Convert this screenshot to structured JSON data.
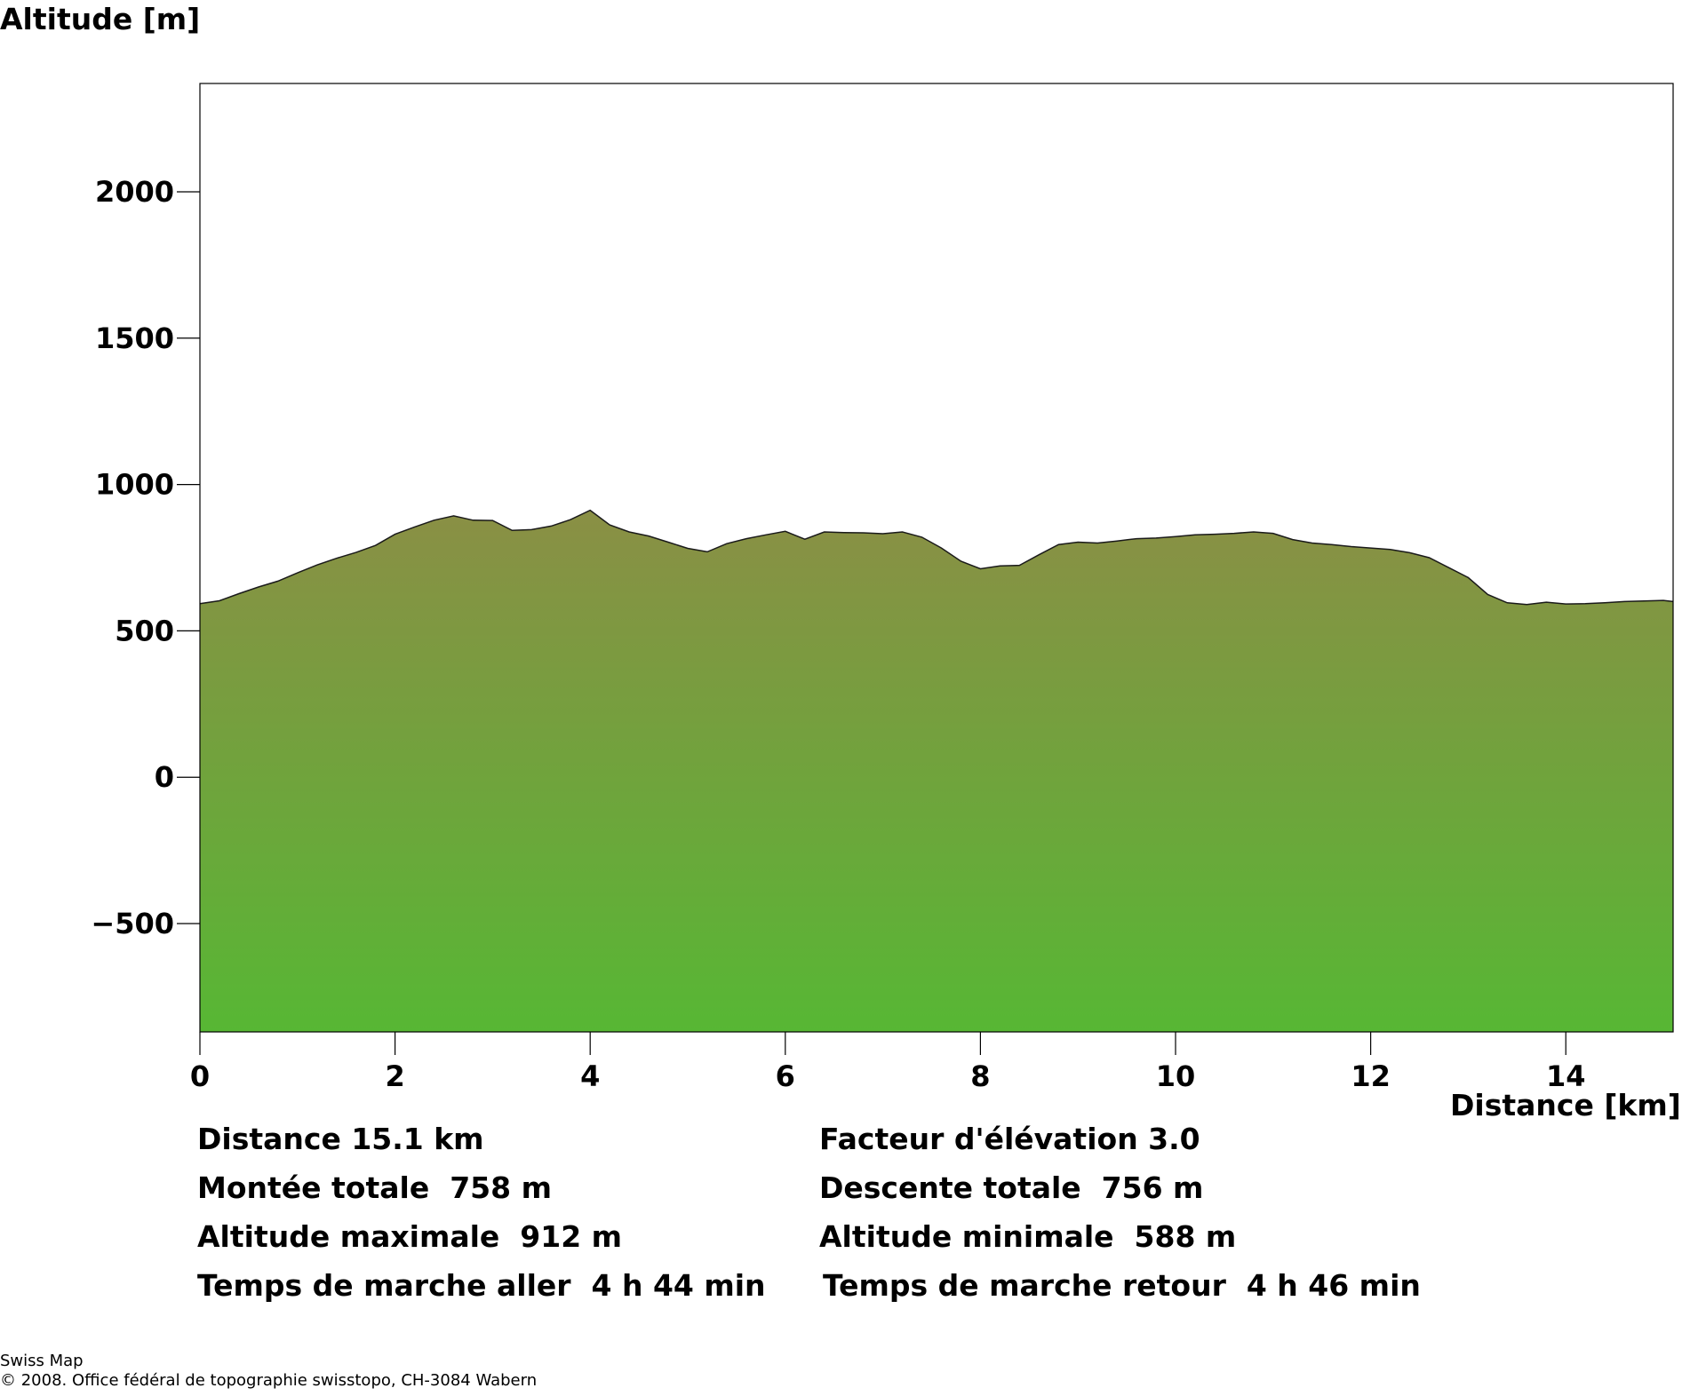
{
  "chart_data": {
    "type": "area",
    "ylabel": "Altitude [m]",
    "xlabel": "Distance [km]",
    "xlim": [
      0,
      15.1
    ],
    "ylim": [
      -870,
      2370
    ],
    "x_ticks": [
      0,
      2,
      4,
      6,
      8,
      10,
      12,
      14
    ],
    "y_ticks": [
      -500,
      0,
      500,
      1000,
      1500,
      2000
    ],
    "x_tick_labels": [
      "0",
      "2",
      "4",
      "6",
      "8",
      "10",
      "12",
      "14"
    ],
    "y_tick_labels": [
      "−500",
      "0",
      "500",
      "1000",
      "1500",
      "2000"
    ],
    "grid": false,
    "colors": {
      "fill_top": "#8a8f45",
      "fill_bottom": "#57b734",
      "outline": "#1a1a1a"
    },
    "x": [
      0,
      0.2,
      0.4,
      0.6,
      0.8,
      1.0,
      1.2,
      1.4,
      1.6,
      1.8,
      2.0,
      2.2,
      2.4,
      2.6,
      2.8,
      3.0,
      3.2,
      3.4,
      3.6,
      3.8,
      4.0,
      4.2,
      4.4,
      4.6,
      4.8,
      5.0,
      5.2,
      5.4,
      5.6,
      5.8,
      6.0,
      6.2,
      6.4,
      6.6,
      6.8,
      7.0,
      7.2,
      7.4,
      7.6,
      7.8,
      8.0,
      8.2,
      8.4,
      8.6,
      8.8,
      9.0,
      9.2,
      9.4,
      9.6,
      9.8,
      10.0,
      10.2,
      10.4,
      10.6,
      10.8,
      11.0,
      11.2,
      11.4,
      11.6,
      11.8,
      12.0,
      12.2,
      12.4,
      12.6,
      12.8,
      13.0,
      13.2,
      13.4,
      13.6,
      13.8,
      14.0,
      14.2,
      14.4,
      14.6,
      14.8,
      15.0,
      15.1
    ],
    "y": [
      593,
      603,
      627,
      650,
      670,
      698,
      725,
      748,
      768,
      792,
      830,
      855,
      878,
      893,
      878,
      877,
      843,
      846,
      858,
      880,
      912,
      862,
      838,
      824,
      803,
      782,
      770,
      798,
      815,
      828,
      840,
      813,
      838,
      836,
      835,
      832,
      838,
      820,
      783,
      738,
      712,
      722,
      724,
      760,
      795,
      803,
      800,
      807,
      815,
      817,
      822,
      828,
      830,
      833,
      838,
      833,
      812,
      800,
      795,
      788,
      783,
      778,
      767,
      750,
      716,
      682,
      624,
      596,
      590,
      598,
      592,
      593,
      596,
      600,
      602,
      604,
      600
    ]
  },
  "stats": {
    "distance": "Distance 15.1 km",
    "elevation_factor": "Facteur d'élévation 3.0",
    "total_ascent": "Montée totale  758 m",
    "total_descent": "Descente totale  756 m",
    "max_altitude": "Altitude maximale  912 m",
    "min_altitude": "Altitude minimale  588 m",
    "walk_time_out": "Temps de marche aller  4 h 44 min",
    "walk_time_back": "Temps de marche retour  4 h 46 min"
  },
  "footer": {
    "line1": "Swiss Map",
    "line2": "© 2008. Office fédéral de topographie swisstopo, CH-3084 Wabern"
  }
}
